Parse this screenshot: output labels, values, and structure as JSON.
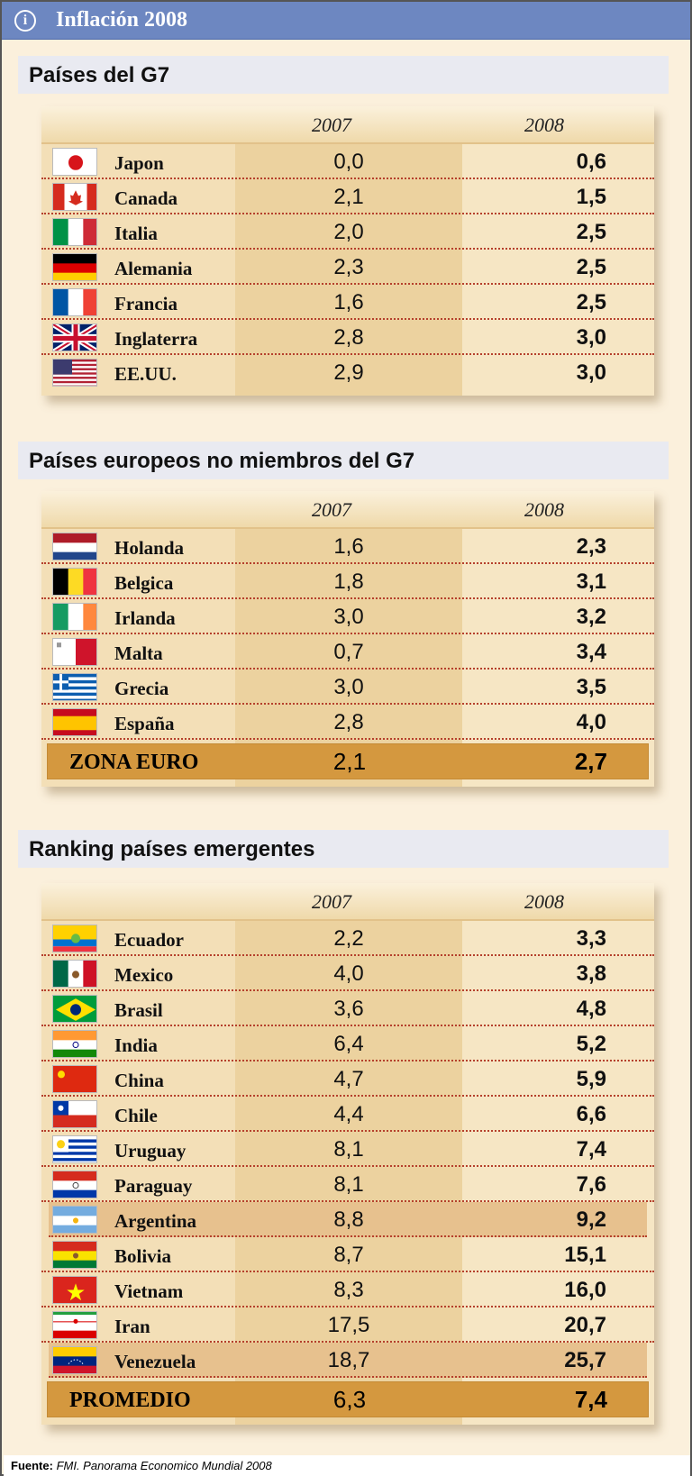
{
  "header": {
    "title": "Inflación 2008",
    "icon": "info-icon"
  },
  "colors": {
    "header": "#6d87c1",
    "background": "#fbf0dc",
    "band": "#e9eaf1",
    "col2007": "#ecd29f",
    "highlight": "#e7c18e",
    "total": "#d4983f",
    "divider": "#b5402c"
  },
  "chart_data": [
    {
      "type": "table",
      "title": "Países del G7",
      "columns": [
        "2007",
        "2008"
      ],
      "rows": [
        {
          "name": "Japon",
          "flag": "japan-flag-icon",
          "v2007": "0,0",
          "v2008": "0,6"
        },
        {
          "name": "Canada",
          "flag": "canada-flag-icon",
          "v2007": "2,1",
          "v2008": "1,5"
        },
        {
          "name": "Italia",
          "flag": "italy-flag-icon",
          "v2007": "2,0",
          "v2008": "2,5"
        },
        {
          "name": "Alemania",
          "flag": "germany-flag-icon",
          "v2007": "2,3",
          "v2008": "2,5"
        },
        {
          "name": "Francia",
          "flag": "france-flag-icon",
          "v2007": "1,6",
          "v2008": "2,5"
        },
        {
          "name": "Inglaterra",
          "flag": "uk-flag-icon",
          "v2007": "2,8",
          "v2008": "3,0"
        },
        {
          "name": "EE.UU.",
          "flag": "usa-flag-icon",
          "v2007": "2,9",
          "v2008": "3,0"
        }
      ]
    },
    {
      "type": "table",
      "title": "Países europeos no miembros del G7",
      "columns": [
        "2007",
        "2008"
      ],
      "rows": [
        {
          "name": "Holanda",
          "flag": "netherlands-flag-icon",
          "v2007": "1,6",
          "v2008": "2,3"
        },
        {
          "name": "Belgica",
          "flag": "belgium-flag-icon",
          "v2007": "1,8",
          "v2008": "3,1"
        },
        {
          "name": "Irlanda",
          "flag": "ireland-flag-icon",
          "v2007": "3,0",
          "v2008": "3,2"
        },
        {
          "name": "Malta",
          "flag": "malta-flag-icon",
          "v2007": "0,7",
          "v2008": "3,4"
        },
        {
          "name": "Grecia",
          "flag": "greece-flag-icon",
          "v2007": "3,0",
          "v2008": "3,5"
        },
        {
          "name": "España",
          "flag": "spain-flag-icon",
          "v2007": "2,8",
          "v2008": "4,0"
        }
      ],
      "total": {
        "name": "ZONA EURO",
        "v2007": "2,1",
        "v2008": "2,7"
      }
    },
    {
      "type": "table",
      "title": "Ranking países emergentes",
      "columns": [
        "2007",
        "2008"
      ],
      "rows": [
        {
          "name": "Ecuador",
          "flag": "ecuador-flag-icon",
          "v2007": "2,2",
          "v2008": "3,3"
        },
        {
          "name": "Mexico",
          "flag": "mexico-flag-icon",
          "v2007": "4,0",
          "v2008": "3,8"
        },
        {
          "name": "Brasil",
          "flag": "brazil-flag-icon",
          "v2007": "3,6",
          "v2008": "4,8"
        },
        {
          "name": "India",
          "flag": "india-flag-icon",
          "v2007": "6,4",
          "v2008": "5,2"
        },
        {
          "name": "China",
          "flag": "china-flag-icon",
          "v2007": "4,7",
          "v2008": "5,9"
        },
        {
          "name": "Chile",
          "flag": "chile-flag-icon",
          "v2007": "4,4",
          "v2008": "6,6"
        },
        {
          "name": "Uruguay",
          "flag": "uruguay-flag-icon",
          "v2007": "8,1",
          "v2008": "7,4"
        },
        {
          "name": "Paraguay",
          "flag": "paraguay-flag-icon",
          "v2007": "8,1",
          "v2008": "7,6"
        },
        {
          "name": "Argentina",
          "flag": "argentina-flag-icon",
          "v2007": "8,8",
          "v2008": "9,2",
          "highlight": true
        },
        {
          "name": "Bolivia",
          "flag": "bolivia-flag-icon",
          "v2007": "8,7",
          "v2008": "15,1"
        },
        {
          "name": "Vietnam",
          "flag": "vietnam-flag-icon",
          "v2007": "8,3",
          "v2008": "16,0"
        },
        {
          "name": "Iran",
          "flag": "iran-flag-icon",
          "v2007": "17,5",
          "v2008": "20,7"
        },
        {
          "name": "Venezuela",
          "flag": "venezuela-flag-icon",
          "v2007": "18,7",
          "v2008": "25,7",
          "highlight": true
        }
      ],
      "total": {
        "name": "PROMEDIO",
        "v2007": "6,3",
        "v2008": "7,4"
      }
    }
  ],
  "footer": {
    "label": "Fuente:",
    "source": "FMI. Panorama Economico Mundial 2008"
  }
}
